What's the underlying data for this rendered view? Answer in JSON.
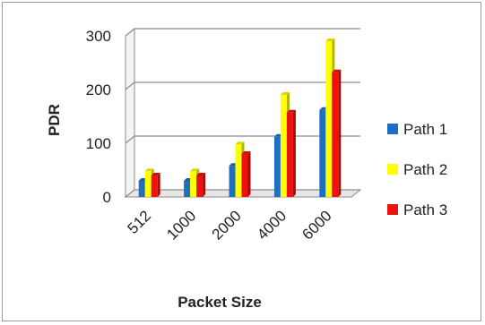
{
  "chart_data": {
    "type": "bar",
    "xlabel": "Packet Size",
    "ylabel": "PDR",
    "categories": [
      "512",
      "1000",
      "2000",
      "4000",
      "6000"
    ],
    "ylim": [
      0,
      300
    ],
    "yticks": [
      0,
      100,
      200,
      300
    ],
    "grid": true,
    "legend": "right",
    "series": [
      {
        "name": "Path 1",
        "color": "#1f6fc0",
        "values": [
          30,
          30,
          58,
          112,
          162
        ]
      },
      {
        "name": "Path 2",
        "color": "#ffff00",
        "values": [
          48,
          48,
          98,
          190,
          290
        ]
      },
      {
        "name": "Path 3",
        "color": "#ee1111",
        "values": [
          40,
          40,
          80,
          157,
          232
        ]
      }
    ]
  }
}
